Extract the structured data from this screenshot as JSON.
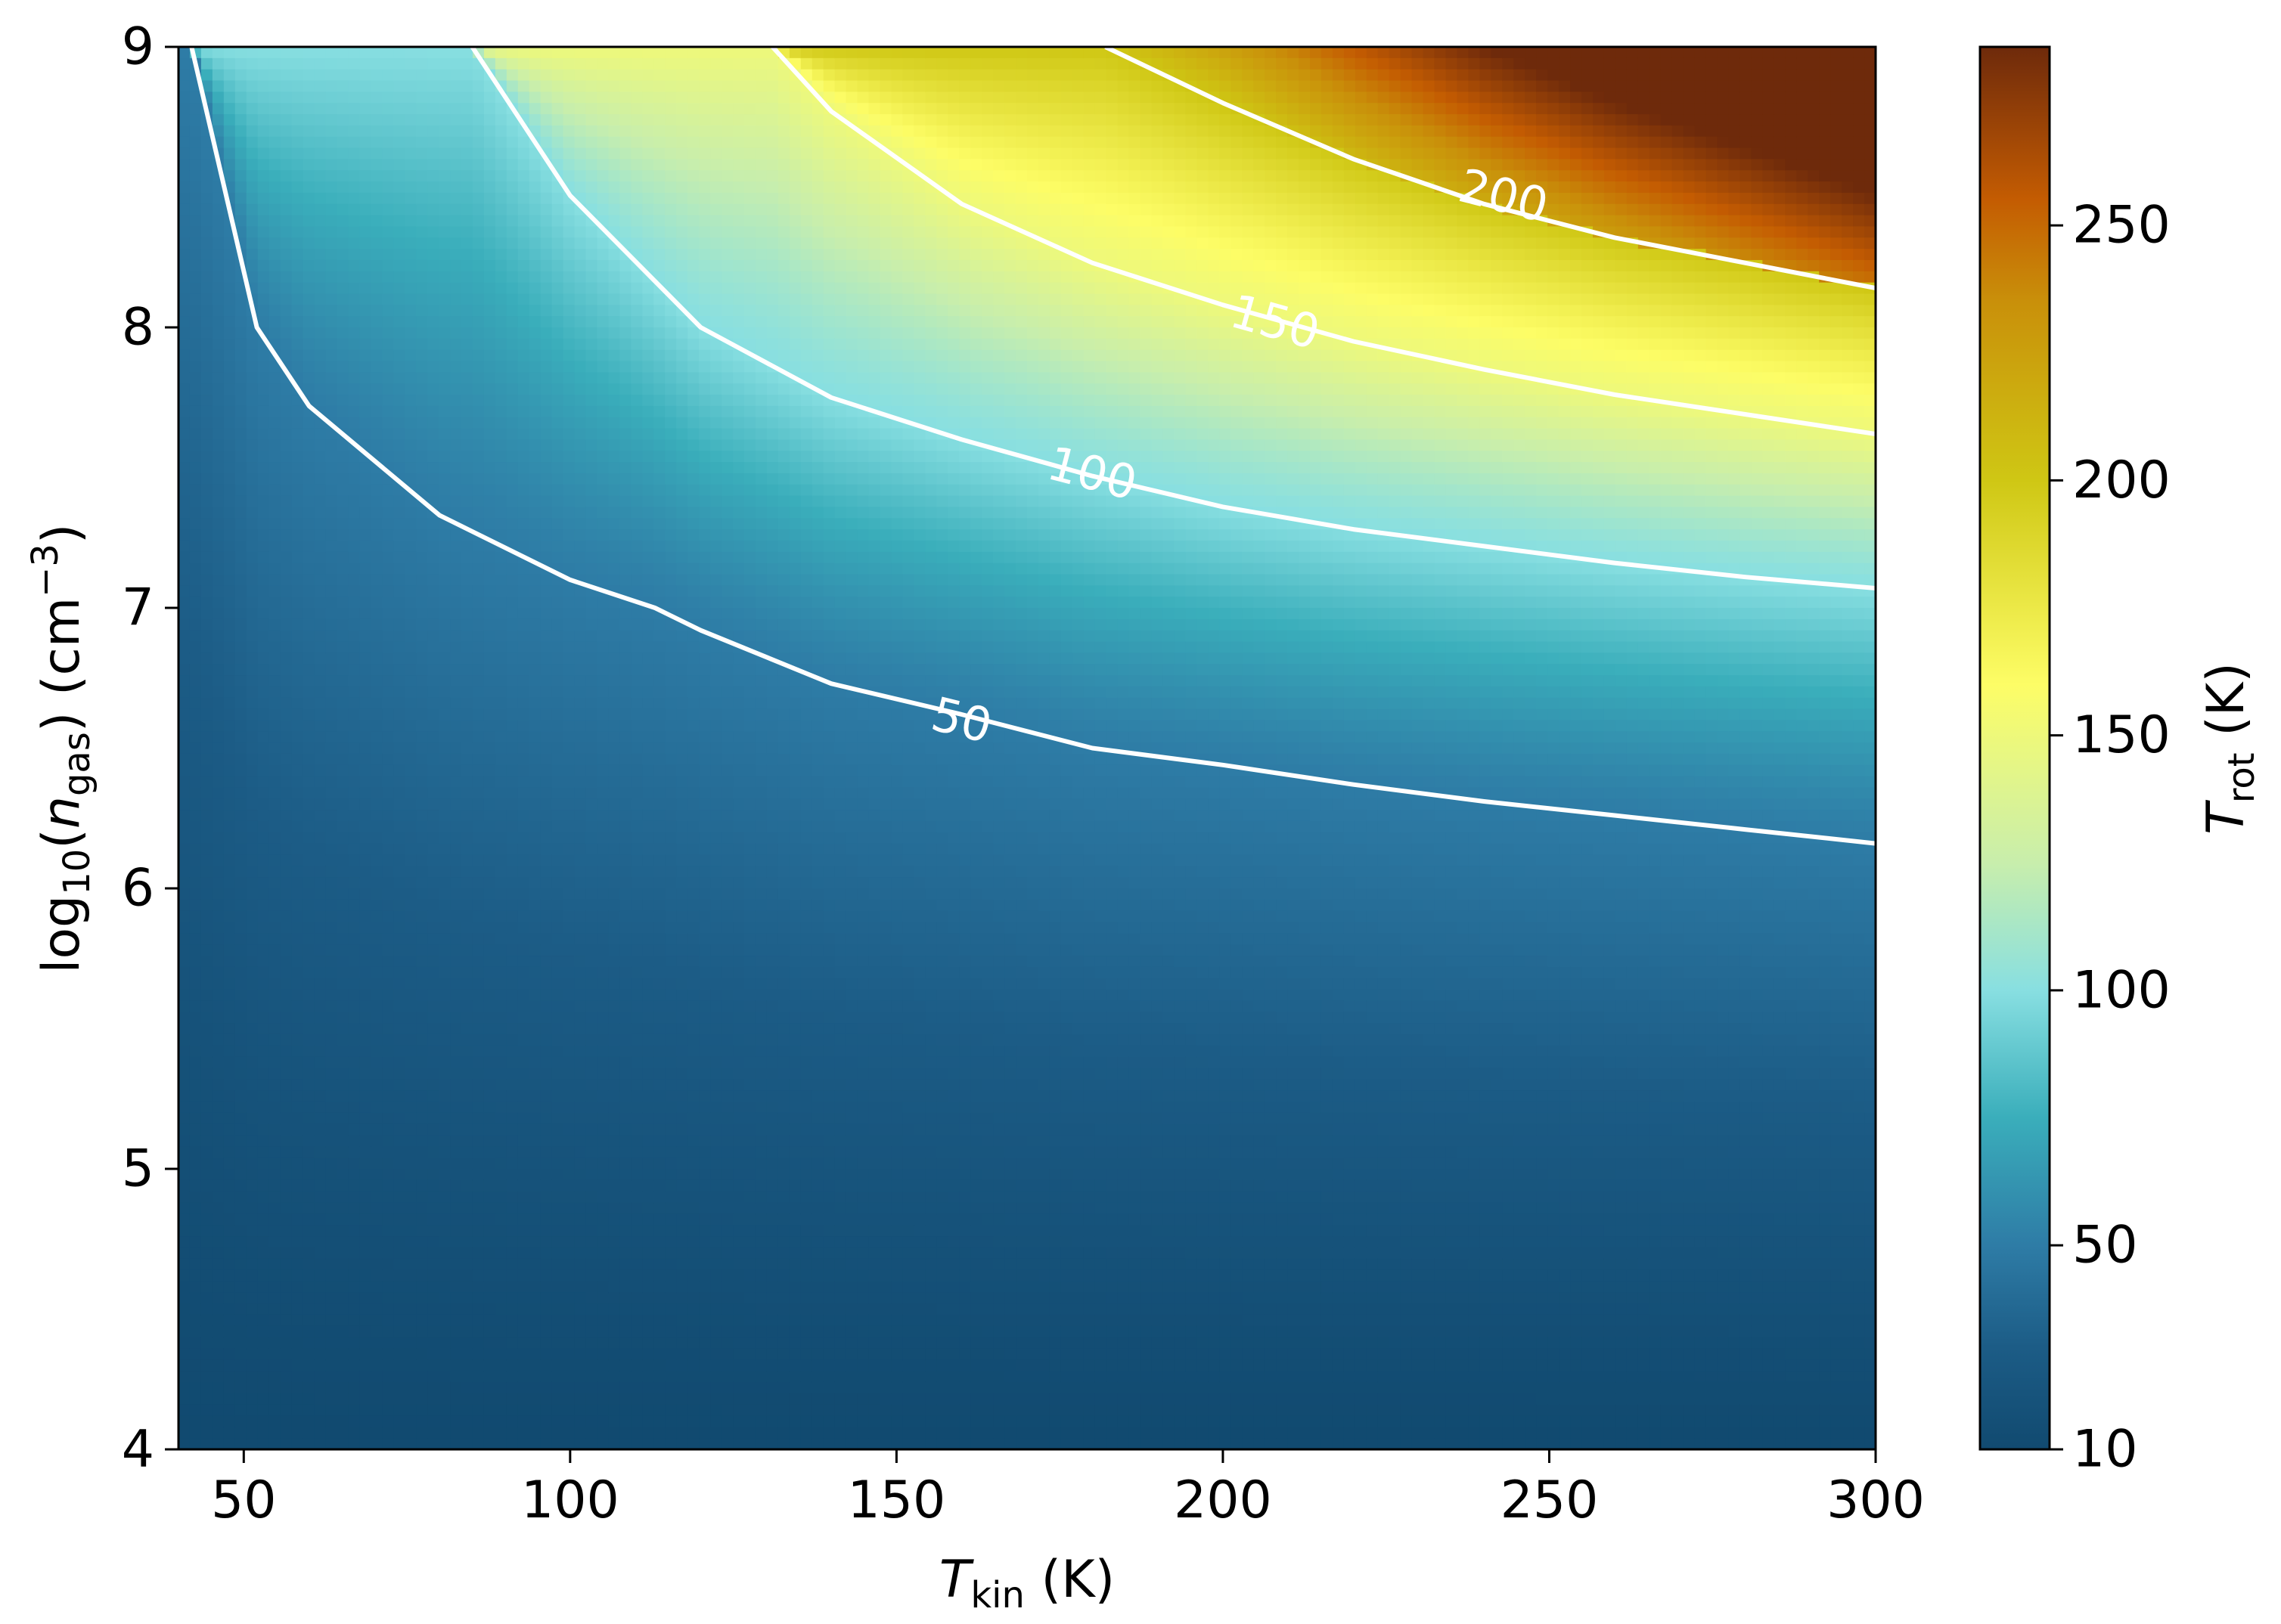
{
  "chart_data": {
    "type": "heatmap",
    "title": "",
    "xlabel": {
      "symbol": "T",
      "sub": "kin",
      "unit": " (K)"
    },
    "ylabel": {
      "prefix": "log",
      "prefix_sub": "10",
      "open": "(",
      "symbol": "n",
      "sub": "gas",
      "close": ") (cm",
      "sup": "−3",
      "end": ")"
    },
    "colorbar_label": {
      "symbol": "T",
      "sub": "rot",
      "unit": " (K)"
    },
    "xlim": [
      40,
      300
    ],
    "ylim": [
      4,
      9
    ],
    "x_ticks": [
      50,
      100,
      150,
      200,
      250,
      300
    ],
    "y_ticks": [
      4,
      5,
      6,
      7,
      8,
      9
    ],
    "colorbar_range": [
      10,
      285
    ],
    "colorbar_ticks": [
      10,
      50,
      100,
      150,
      200,
      250
    ],
    "colormap": [
      {
        "v": 10,
        "color": "#114a70"
      },
      {
        "v": 30,
        "color": "#1c5c86"
      },
      {
        "v": 50,
        "color": "#2e7ca6"
      },
      {
        "v": 75,
        "color": "#3aaebb"
      },
      {
        "v": 100,
        "color": "#88dfe1"
      },
      {
        "v": 125,
        "color": "#c8eeac"
      },
      {
        "v": 160,
        "color": "#fdfd66"
      },
      {
        "v": 200,
        "color": "#cfc714"
      },
      {
        "v": 235,
        "color": "#c9900a"
      },
      {
        "v": 255,
        "color": "#c45c02"
      },
      {
        "v": 285,
        "color": "#6e2a0b"
      }
    ],
    "contour_levels": [
      {
        "level": 50,
        "label": "50",
        "label_at": [
          160,
          6.6
        ],
        "points": [
          [
            42,
            9
          ],
          [
            52,
            8
          ],
          [
            60,
            7.72
          ],
          [
            80,
            7.33
          ],
          [
            100,
            7.1
          ],
          [
            113,
            7.0
          ],
          [
            120,
            6.92
          ],
          [
            140,
            6.73
          ],
          [
            160,
            6.62
          ],
          [
            180,
            6.5
          ],
          [
            200,
            6.44
          ],
          [
            220,
            6.37
          ],
          [
            240,
            6.31
          ],
          [
            260,
            6.26
          ],
          [
            280,
            6.21
          ],
          [
            300,
            6.16
          ]
        ]
      },
      {
        "level": 100,
        "label": "100",
        "label_at": [
          180,
          7.48
        ],
        "points": [
          [
            85,
            9
          ],
          [
            100,
            8.47
          ],
          [
            120,
            8.0
          ],
          [
            140,
            7.75
          ],
          [
            160,
            7.6
          ],
          [
            180,
            7.47
          ],
          [
            200,
            7.36
          ],
          [
            220,
            7.28
          ],
          [
            240,
            7.22
          ],
          [
            260,
            7.16
          ],
          [
            280,
            7.11
          ],
          [
            300,
            7.07
          ]
        ]
      },
      {
        "level": 150,
        "label": "150",
        "label_at": [
          208,
          8.02
        ],
        "points": [
          [
            131,
            9
          ],
          [
            140,
            8.77
          ],
          [
            160,
            8.44
          ],
          [
            180,
            8.23
          ],
          [
            200,
            8.08
          ],
          [
            220,
            7.95
          ],
          [
            240,
            7.85
          ],
          [
            260,
            7.76
          ],
          [
            280,
            7.69
          ],
          [
            300,
            7.62
          ]
        ]
      },
      {
        "level": 200,
        "label": "200",
        "label_at": [
          243,
          8.47
        ],
        "points": [
          [
            182,
            9
          ],
          [
            200,
            8.8
          ],
          [
            220,
            8.6
          ],
          [
            240,
            8.44
          ],
          [
            260,
            8.32
          ],
          [
            280,
            8.23
          ],
          [
            300,
            8.14
          ]
        ]
      }
    ]
  }
}
